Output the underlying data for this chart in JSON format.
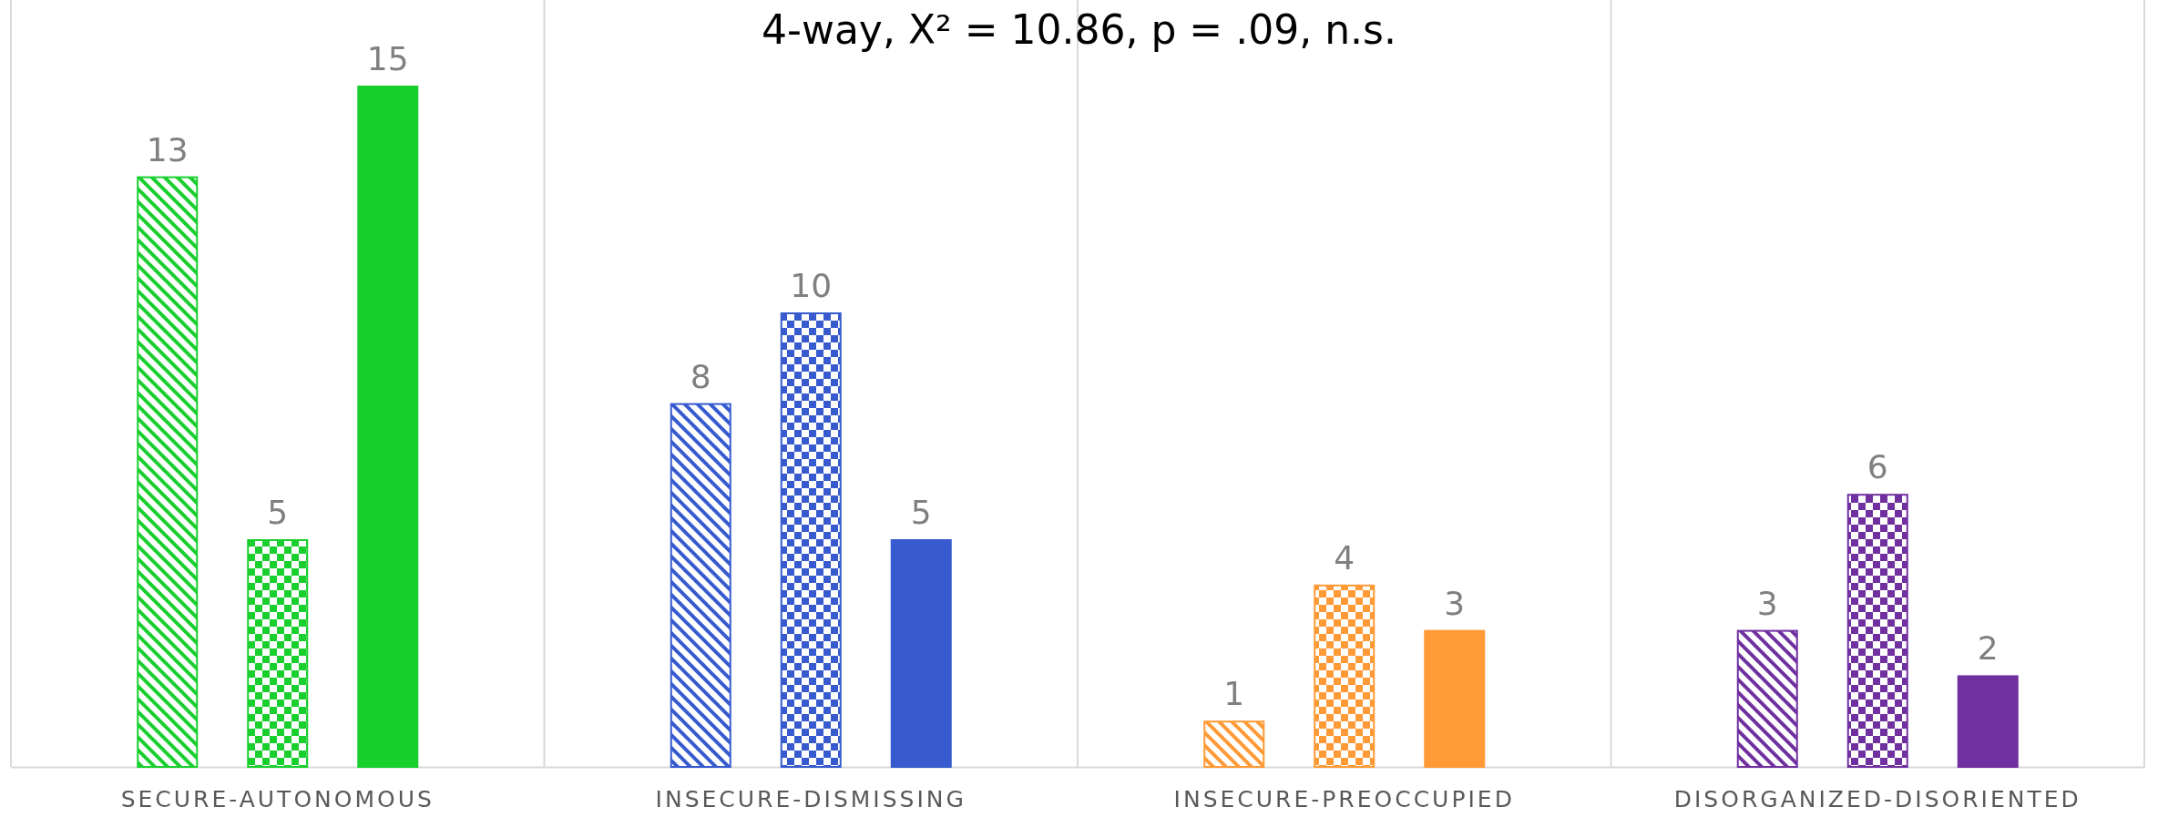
{
  "chart_data": {
    "type": "bar",
    "title": "4-way, Χ² = 10.86, p = .09, n.s.",
    "categories": [
      "SECURE-AUTONOMOUS",
      "INSECURE-DISMISSING",
      "INSECURE-PREOCCUPIED",
      "DISORGANIZED-DISORIENTED"
    ],
    "series": [
      {
        "values": [
          13,
          8,
          1,
          3
        ],
        "colors": [
          "#19cf2e",
          "#375bcf",
          "#ff9a36",
          "#7030a0"
        ]
      },
      {
        "values": [
          5,
          10,
          4,
          6
        ],
        "colors": [
          "#19cf2e",
          "#375bcf",
          "#ff9a36",
          "#7030a0"
        ]
      },
      {
        "values": [
          15,
          5,
          3,
          2
        ],
        "colors": [
          "#19cf2e",
          "#375bcf",
          "#ff9a36",
          "#7030a0"
        ]
      }
    ],
    "data_labels": true,
    "grid": "x"
  }
}
